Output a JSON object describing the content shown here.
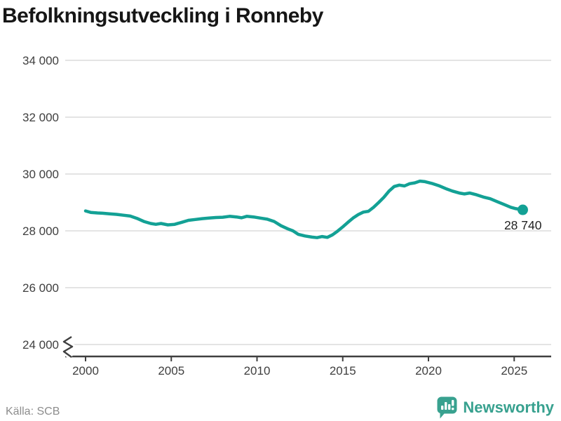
{
  "title": "Befolkningsutveckling i Ronneby",
  "source": {
    "label": "Källa: SCB"
  },
  "branding": {
    "name": "Newsworthy",
    "color": "#38a18f",
    "icon": "newsworthy-bars-bubble-icon"
  },
  "colors": {
    "line": "#13a195",
    "grid": "#e4e4e4",
    "axis": "#3f3f3f",
    "tick_label": "#3f3f3f",
    "title": "#161616",
    "end_label": "#222222",
    "source": "#8d8d8d"
  },
  "chart_data": {
    "type": "line",
    "title": "Befolkningsutveckling i Ronneby",
    "xlabel": "",
    "ylabel": "",
    "grid": true,
    "legend": false,
    "axis_break": true,
    "ylim": [
      24000,
      34000
    ],
    "xlim": [
      2000,
      2025.5
    ],
    "x_ticks": {
      "values": [
        2000,
        2005,
        2010,
        2015,
        2020,
        2025
      ],
      "labels": [
        "2000",
        "2005",
        "2010",
        "2015",
        "2020",
        "2025"
      ]
    },
    "y_ticks": {
      "values": [
        34000,
        32000,
        30000,
        28000,
        26000,
        24000
      ],
      "labels": [
        "34 000",
        "32 000",
        "30 000",
        "28 000",
        "26 000",
        "24 000"
      ]
    },
    "line_color": "#13a195",
    "end_point": {
      "x": 2025.5,
      "value": 28740
    },
    "end_point_label": "28 740",
    "x": [
      2000.0,
      2000.3,
      2000.7,
      2001.0,
      2001.4,
      2001.8,
      2002.2,
      2002.6,
      2003.0,
      2003.4,
      2003.8,
      2004.1,
      2004.4,
      2004.8,
      2005.2,
      2005.6,
      2006.0,
      2006.4,
      2006.8,
      2007.2,
      2007.6,
      2008.0,
      2008.4,
      2008.8,
      2009.1,
      2009.4,
      2009.8,
      2010.2,
      2010.6,
      2011.0,
      2011.4,
      2011.8,
      2012.1,
      2012.4,
      2012.8,
      2013.2,
      2013.5,
      2013.8,
      2014.1,
      2014.4,
      2014.7,
      2015.0,
      2015.3,
      2015.6,
      2015.9,
      2016.2,
      2016.5,
      2016.8,
      2017.1,
      2017.4,
      2017.7,
      2018.0,
      2018.3,
      2018.6,
      2018.9,
      2019.2,
      2019.5,
      2019.8,
      2020.2,
      2020.6,
      2021.0,
      2021.4,
      2021.8,
      2022.1,
      2022.4,
      2022.8,
      2023.2,
      2023.6,
      2024.0,
      2024.4,
      2024.8,
      2025.1,
      2025.5
    ],
    "values": [
      28700,
      28650,
      28630,
      28620,
      28600,
      28580,
      28550,
      28520,
      28440,
      28330,
      28260,
      28230,
      28260,
      28210,
      28230,
      28300,
      28370,
      28400,
      28430,
      28450,
      28470,
      28480,
      28510,
      28490,
      28460,
      28510,
      28490,
      28450,
      28410,
      28330,
      28180,
      28070,
      28000,
      27880,
      27820,
      27780,
      27760,
      27800,
      27770,
      27860,
      27990,
      28140,
      28300,
      28450,
      28570,
      28660,
      28690,
      28830,
      29000,
      29180,
      29400,
      29560,
      29610,
      29580,
      29660,
      29690,
      29750,
      29730,
      29670,
      29590,
      29490,
      29400,
      29330,
      29300,
      29330,
      29270,
      29190,
      29130,
      29030,
      28930,
      28830,
      28780,
      28740
    ]
  }
}
